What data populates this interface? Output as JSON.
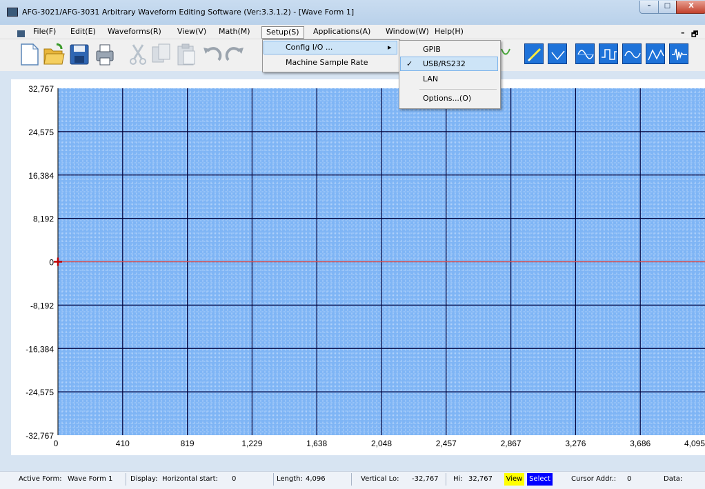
{
  "window": {
    "title": "AFG-3021/AFG-3031 Arbitrary Waveform Editing Software (Ver:3.3.1.2) - [Wave Form 1]",
    "min_symbol": "–",
    "max_symbol": "□",
    "close_symbol": "X"
  },
  "menubar": {
    "items": [
      "File(F)",
      "Edit(E)",
      "Waveforms(R)",
      "View(V)",
      "Math(M)",
      "Setup(S)",
      "Applications(A)",
      "Window(W)",
      "Help(H)"
    ],
    "active": "Setup(S)",
    "mdi_min": "–",
    "mdi_restore": "🗗"
  },
  "toolbar": {
    "icons": [
      "new-file-icon",
      "open-folder-icon",
      "save-disk-icon",
      "print-icon",
      "cut-icon",
      "copy-icon",
      "paste-icon",
      "undo-icon",
      "redo-icon"
    ],
    "wave_icons": [
      "pencil-draw-icon",
      "point-line-icon",
      "sine-wave-icon",
      "square-wave-icon",
      "sine-wave-alt-icon",
      "triangle-wave-icon",
      "noise-wave-icon"
    ]
  },
  "setup_menu": {
    "items": [
      "Config I/O ...",
      "Machine Sample Rate"
    ],
    "highlighted": "Config I/O ...",
    "submenu_arrow": "▸"
  },
  "config_io_submenu": {
    "items": [
      "GPIB",
      "USB/RS232",
      "LAN",
      "Options...(O)"
    ],
    "checked": "USB/RS232",
    "check_mark": "✓"
  },
  "chart_data": {
    "type": "line",
    "xlim": [
      0,
      4095
    ],
    "ylim": [
      -32767,
      32767
    ],
    "x_ticks": [
      "0",
      "410",
      "819",
      "1,229",
      "1,638",
      "2,048",
      "2,457",
      "2,867",
      "3,276",
      "3,686",
      "4,095"
    ],
    "y_ticks": [
      "32,767",
      "24,575",
      "16,384",
      "8,192",
      "0",
      "-8,192",
      "-16,384",
      "-24,575",
      "-32,767"
    ],
    "grid": true,
    "cursor": {
      "x": 0,
      "y": 0
    },
    "colors": {
      "plot_bg": "#7fb5f5",
      "minor_grid": "#e6f0ff",
      "major_grid": "#00003a",
      "zero_line": "#e05050",
      "cursor": "#c00000"
    }
  },
  "status": {
    "active_form_label": "Active Form:",
    "active_form": "Wave Form 1",
    "display_label": "Display:",
    "hstart_label": "Horizontal start:",
    "hstart": "0",
    "length_label": "Length:",
    "length": "4,096",
    "vlo_label": "Vertical Lo:",
    "vlo": "-32,767",
    "hi_label": "Hi:",
    "hi": "32,767",
    "view": "View",
    "select": "Select",
    "cursor_label": "Cursor Addr.:",
    "cursor": "0",
    "data_label": "Data:"
  }
}
